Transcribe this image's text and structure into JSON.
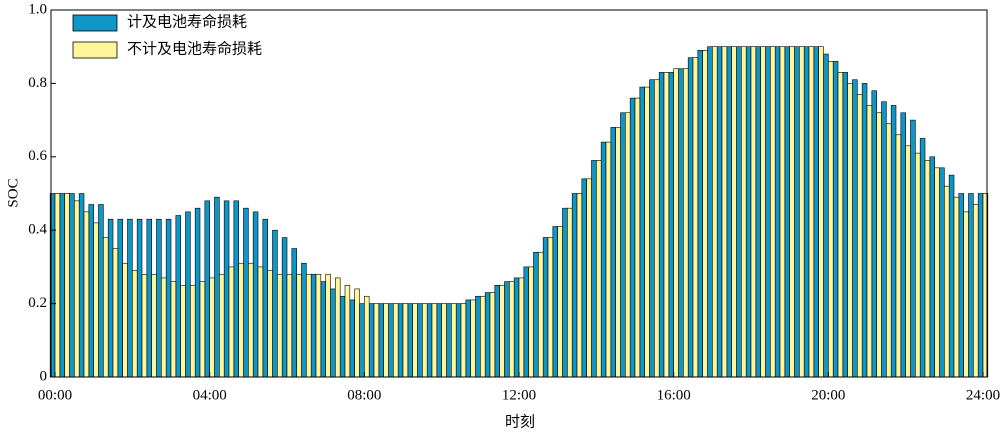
{
  "chart_data": {
    "type": "bar",
    "ylabel": "SOC",
    "xlabel": "时刻",
    "x": [
      0,
      0.25,
      0.5,
      0.75,
      1,
      1.25,
      1.5,
      1.75,
      2,
      2.25,
      2.5,
      2.75,
      3,
      3.25,
      3.5,
      3.75,
      4,
      4.25,
      4.5,
      4.75,
      5,
      5.25,
      5.5,
      5.75,
      6,
      6.25,
      6.5,
      6.75,
      7,
      7.25,
      7.5,
      7.75,
      8,
      8.25,
      8.5,
      8.75,
      9,
      9.25,
      9.5,
      9.75,
      10,
      10.25,
      10.5,
      10.75,
      11,
      11.25,
      11.5,
      11.75,
      12,
      12.25,
      12.5,
      12.75,
      13,
      13.25,
      13.5,
      13.75,
      14,
      14.25,
      14.5,
      14.75,
      15,
      15.25,
      15.5,
      15.75,
      16,
      16.25,
      16.5,
      16.75,
      17,
      17.25,
      17.5,
      17.75,
      18,
      18.25,
      18.5,
      18.75,
      19,
      19.25,
      19.5,
      19.75,
      20,
      20.25,
      20.5,
      20.75,
      21,
      21.25,
      21.5,
      21.75,
      22,
      22.25,
      22.5,
      22.75,
      23,
      23.25,
      23.5,
      23.75,
      24
    ],
    "series": [
      {
        "name": "计及电池寿命损耗",
        "color": "#0e96c8",
        "values": [
          0.5,
          0.5,
          0.5,
          0.5,
          0.47,
          0.47,
          0.43,
          0.43,
          0.43,
          0.43,
          0.43,
          0.43,
          0.43,
          0.44,
          0.45,
          0.46,
          0.48,
          0.49,
          0.48,
          0.48,
          0.46,
          0.45,
          0.43,
          0.4,
          0.38,
          0.35,
          0.31,
          0.28,
          0.26,
          0.24,
          0.22,
          0.21,
          0.2,
          0.2,
          0.2,
          0.2,
          0.2,
          0.2,
          0.2,
          0.2,
          0.2,
          0.2,
          0.2,
          0.21,
          0.22,
          0.23,
          0.25,
          0.26,
          0.27,
          0.3,
          0.34,
          0.38,
          0.41,
          0.46,
          0.5,
          0.54,
          0.59,
          0.64,
          0.68,
          0.72,
          0.76,
          0.79,
          0.81,
          0.83,
          0.83,
          0.84,
          0.87,
          0.89,
          0.9,
          0.9,
          0.9,
          0.9,
          0.9,
          0.9,
          0.9,
          0.9,
          0.9,
          0.9,
          0.9,
          0.9,
          0.88,
          0.86,
          0.83,
          0.81,
          0.8,
          0.78,
          0.75,
          0.74,
          0.72,
          0.7,
          0.65,
          0.6,
          0.57,
          0.55,
          0.5,
          0.5,
          0.5
        ]
      },
      {
        "name": "不计及电池寿命损耗",
        "color": "#fff59a",
        "values": [
          0.5,
          0.5,
          0.48,
          0.45,
          0.42,
          0.38,
          0.35,
          0.31,
          0.29,
          0.28,
          0.28,
          0.27,
          0.26,
          0.25,
          0.25,
          0.26,
          0.27,
          0.28,
          0.3,
          0.31,
          0.31,
          0.3,
          0.29,
          0.28,
          0.28,
          0.28,
          0.28,
          0.28,
          0.28,
          0.27,
          0.25,
          0.24,
          0.22,
          0.2,
          0.2,
          0.2,
          0.2,
          0.2,
          0.2,
          0.2,
          0.2,
          0.2,
          0.2,
          0.21,
          0.22,
          0.23,
          0.25,
          0.26,
          0.27,
          0.3,
          0.34,
          0.38,
          0.41,
          0.46,
          0.5,
          0.54,
          0.59,
          0.64,
          0.68,
          0.72,
          0.76,
          0.79,
          0.81,
          0.83,
          0.84,
          0.84,
          0.87,
          0.89,
          0.9,
          0.9,
          0.9,
          0.9,
          0.9,
          0.9,
          0.9,
          0.9,
          0.9,
          0.9,
          0.9,
          0.9,
          0.86,
          0.83,
          0.8,
          0.77,
          0.74,
          0.72,
          0.69,
          0.66,
          0.63,
          0.61,
          0.59,
          0.57,
          0.52,
          0.49,
          0.45,
          0.47,
          0.5
        ]
      }
    ],
    "xlim": [
      0,
      24
    ],
    "xticks": [
      {
        "value": 0,
        "label": "00:00"
      },
      {
        "value": 4,
        "label": "04:00"
      },
      {
        "value": 8,
        "label": "08:00"
      },
      {
        "value": 12,
        "label": "12:00"
      },
      {
        "value": 16,
        "label": "16:00"
      },
      {
        "value": 20,
        "label": "20:00"
      },
      {
        "value": 24,
        "label": "24:00"
      }
    ],
    "ylim": [
      0,
      1
    ],
    "yticks": [
      0,
      0.2,
      0.4,
      0.6,
      0.8,
      {
        "value": 1,
        "label": "1.0"
      }
    ],
    "legend": "upper-left"
  }
}
